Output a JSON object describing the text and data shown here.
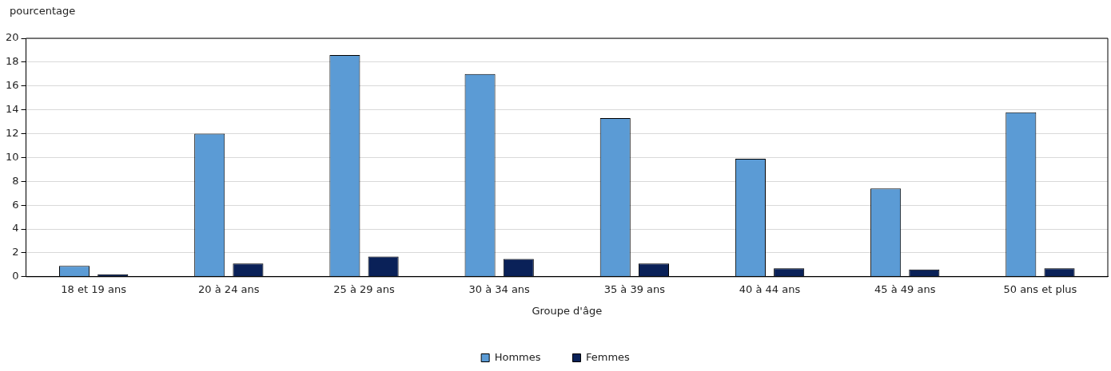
{
  "chart_data": {
    "type": "bar",
    "ylabel": "pourcentage",
    "xlabel": "Groupe d'âge",
    "categories": [
      "18 et 19 ans",
      "20 à 24 ans",
      "25 à 29 ans",
      "30 à 34 ans",
      "35 à 39 ans",
      "40 à 44 ans",
      "45 à 49 ans",
      "50 ans et plus"
    ],
    "series": [
      {
        "name": "Hommes",
        "color": "#5b9bd5",
        "values": [
          0.9,
          12.0,
          18.6,
          17.0,
          13.3,
          9.9,
          7.4,
          13.8
        ]
      },
      {
        "name": "Femmes",
        "color": "#0a2158",
        "values": [
          0.2,
          1.1,
          1.7,
          1.5,
          1.1,
          0.7,
          0.6,
          0.7
        ]
      }
    ],
    "ylim": [
      0,
      20
    ],
    "yticks": [
      0,
      2,
      4,
      6,
      8,
      10,
      12,
      14,
      16,
      18,
      20
    ],
    "grid": "y",
    "legend": "bottom"
  }
}
